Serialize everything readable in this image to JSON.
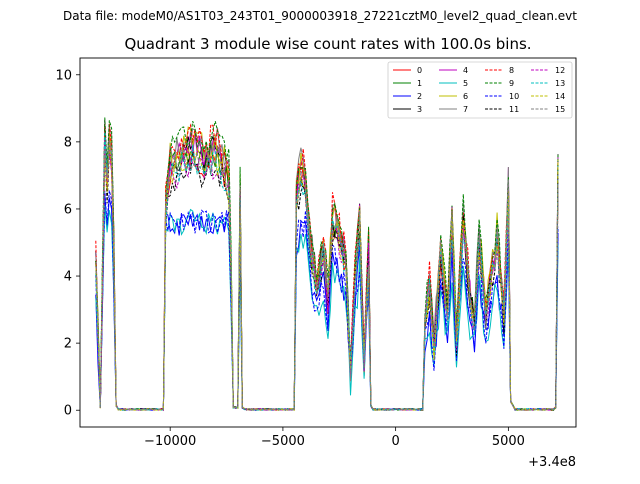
{
  "suptitle": "Data file: modeM0/AS1T03_243T01_9000003918_27221cztM0_level2_quad_clean.evt",
  "chart_data": {
    "type": "line",
    "title": "Quadrant 3 module wise count rates with 100.0s bins.",
    "xlabel": "",
    "ylabel": "",
    "x_offset_label": "+3.4e8",
    "xlim": [
      -14000,
      8000
    ],
    "ylim": [
      -0.5,
      10.5
    ],
    "xticks": [
      -10000,
      -5000,
      0,
      5000
    ],
    "xtick_labels": [
      "−10000",
      "−5000",
      "0",
      "5000"
    ],
    "yticks": [
      0,
      2,
      4,
      6,
      8,
      10
    ],
    "ytick_labels": [
      "0",
      "2",
      "4",
      "6",
      "8",
      "10"
    ],
    "legend_position": "top-right",
    "series": [
      {
        "name": "0",
        "color": "#ff0000",
        "dash": "solid"
      },
      {
        "name": "1",
        "color": "#008000",
        "dash": "solid"
      },
      {
        "name": "2",
        "color": "#0000ff",
        "dash": "solid"
      },
      {
        "name": "3",
        "color": "#000000",
        "dash": "solid"
      },
      {
        "name": "4",
        "color": "#bf00bf",
        "dash": "solid"
      },
      {
        "name": "5",
        "color": "#00bfbf",
        "dash": "solid"
      },
      {
        "name": "6",
        "color": "#bfbf00",
        "dash": "solid"
      },
      {
        "name": "7",
        "color": "#808080",
        "dash": "solid"
      },
      {
        "name": "8",
        "color": "#ff0000",
        "dash": "dashed"
      },
      {
        "name": "9",
        "color": "#008000",
        "dash": "dashed"
      },
      {
        "name": "10",
        "color": "#0000ff",
        "dash": "dashed"
      },
      {
        "name": "11",
        "color": "#000000",
        "dash": "dashed"
      },
      {
        "name": "12",
        "color": "#bf00bf",
        "dash": "dashed"
      },
      {
        "name": "13",
        "color": "#00bfbf",
        "dash": "dashed"
      },
      {
        "name": "14",
        "color": "#bfbf00",
        "dash": "dashed"
      },
      {
        "name": "15",
        "color": "#808080",
        "dash": "dashed"
      }
    ],
    "envelope": {
      "x": [
        -13300,
        -13100,
        -12900,
        -12800,
        -12700,
        -12600,
        -12500,
        -12400,
        -12300,
        -10300,
        -10200,
        -10000,
        -9500,
        -9000,
        -8500,
        -8000,
        -7600,
        -7400,
        -7300,
        -7200,
        -7000,
        -6900,
        -6800,
        -6700,
        -4500,
        -4400,
        -4200,
        -4000,
        -3800,
        -3500,
        -3200,
        -3000,
        -2800,
        -2500,
        -2200,
        -2000,
        -1800,
        -1600,
        -1400,
        -1200,
        -1100,
        -1000,
        1200,
        1300,
        1500,
        1700,
        2000,
        2300,
        2500,
        2700,
        3000,
        3300,
        3500,
        3700,
        4000,
        4200,
        4500,
        4800,
        5000,
        5100,
        5300,
        6900,
        7000,
        7100,
        7200
      ],
      "base": [
        4.8,
        0.1,
        8.6,
        7.2,
        8.3,
        8.0,
        5.0,
        0.2,
        0.0,
        0.0,
        6.5,
        7.6,
        7.9,
        8.2,
        7.8,
        8.1,
        7.6,
        7.2,
        4.5,
        0.1,
        0.1,
        6.8,
        0.1,
        0.0,
        0.0,
        6.8,
        7.4,
        7.3,
        5.2,
        4.0,
        5.0,
        3.5,
        6.0,
        5.5,
        4.6,
        1.2,
        4.2,
        6.0,
        1.5,
        5.0,
        0.2,
        0.0,
        0.0,
        2.8,
        4.0,
        2.0,
        5.0,
        3.0,
        6.0,
        2.2,
        6.0,
        3.5,
        2.8,
        5.5,
        3.0,
        4.0,
        5.5,
        3.0,
        7.0,
        0.4,
        0.0,
        0.0,
        0.0,
        0.1,
        7.6
      ]
    }
  }
}
